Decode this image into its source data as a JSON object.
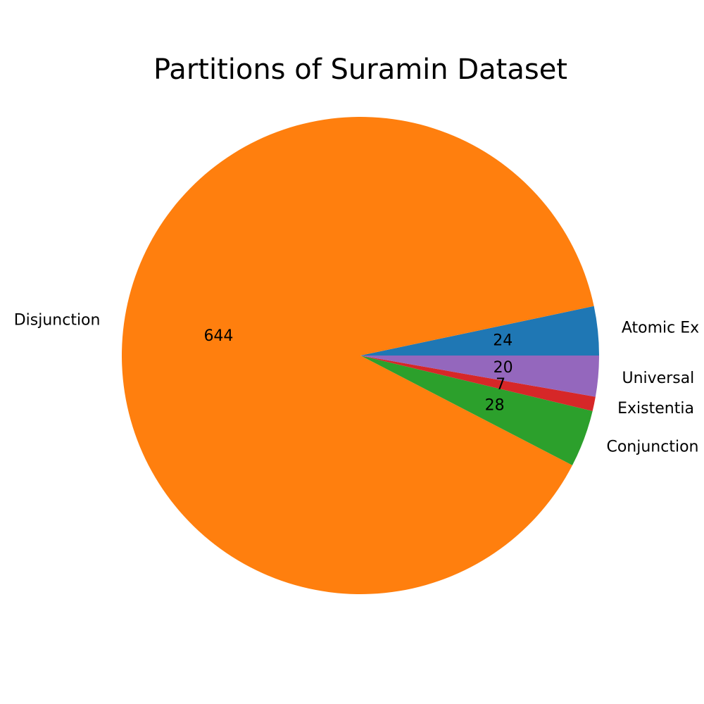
{
  "chart_data": {
    "type": "pie",
    "title": "Partitions of Suramin Dataset",
    "categories": [
      "Atomic Ex",
      "Disjunction",
      "Conjunction",
      "Existentia",
      "Universal"
    ],
    "values": [
      24,
      644,
      28,
      7,
      20
    ],
    "value_labels": [
      "24",
      "644",
      "28",
      "7",
      "20"
    ],
    "colors": [
      "#1f77b4",
      "#ff7f0e",
      "#2ca02c",
      "#d62728",
      "#9467bd"
    ],
    "start_angle_deg": 0,
    "direction": "counterclockwise",
    "legend": "none"
  }
}
